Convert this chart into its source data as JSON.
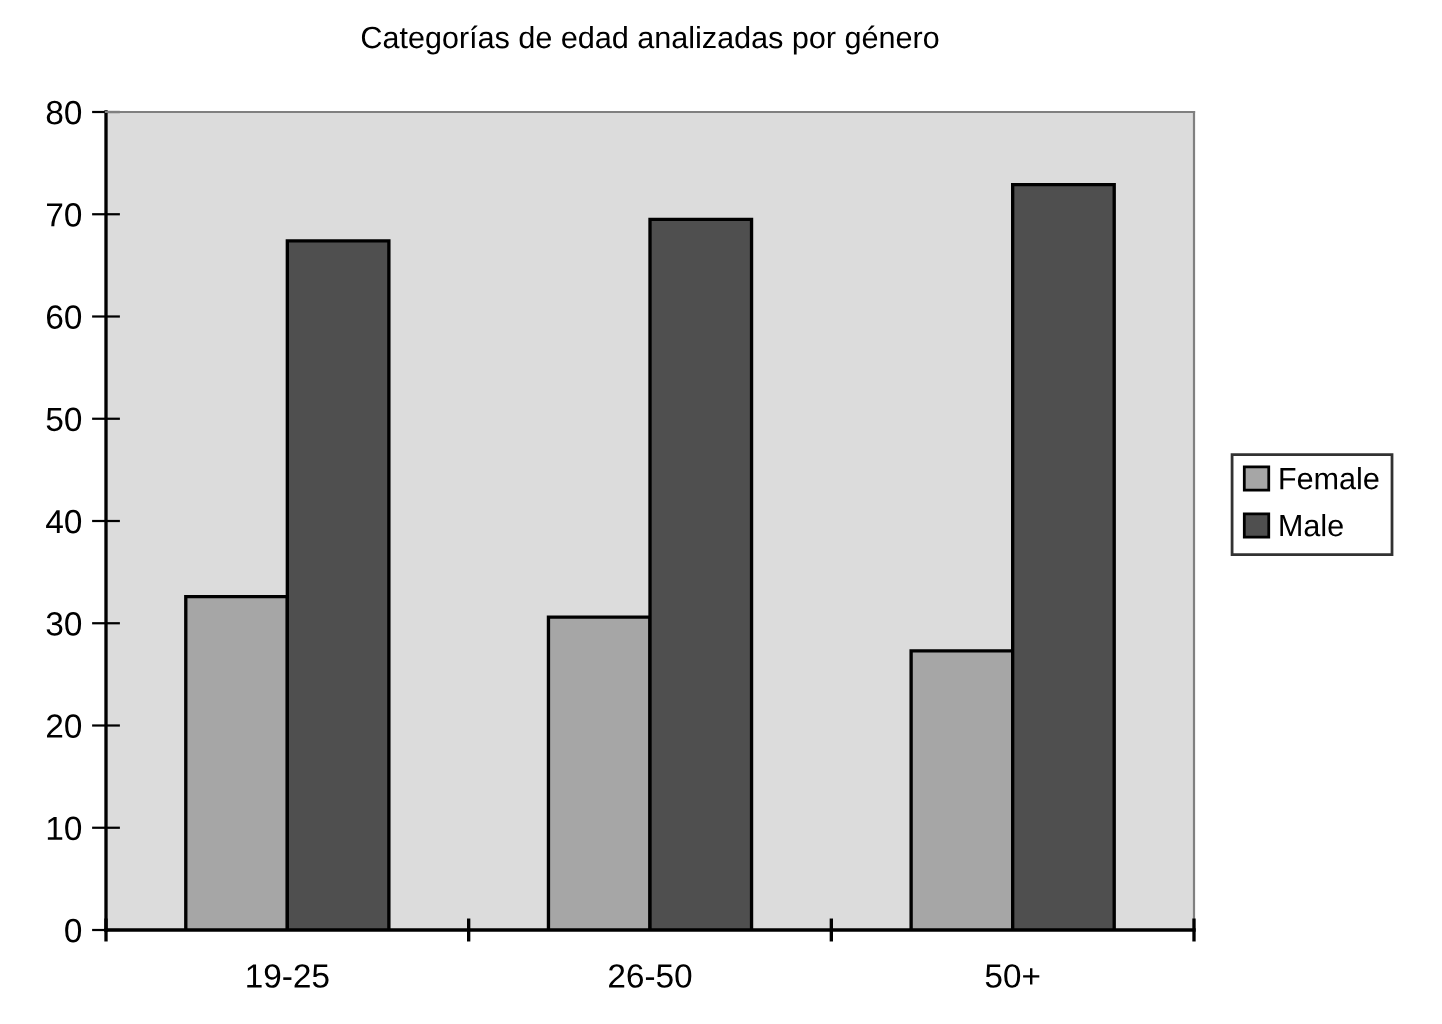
{
  "chart_data": {
    "type": "bar",
    "title": "Categorías de edad analizadas por género",
    "categories": [
      "19-25",
      "26-50",
      "50+"
    ],
    "series": [
      {
        "name": "Female",
        "color": "#a6a6a6",
        "values": [
          32.6,
          30.6,
          27.3
        ]
      },
      {
        "name": "Male",
        "color": "#4f4f4f",
        "values": [
          67.4,
          69.5,
          72.9
        ]
      }
    ],
    "ylim": [
      0,
      80
    ],
    "yticks": [
      0,
      10,
      20,
      30,
      40,
      50,
      60,
      70,
      80
    ],
    "grid": false,
    "legend": "right"
  }
}
